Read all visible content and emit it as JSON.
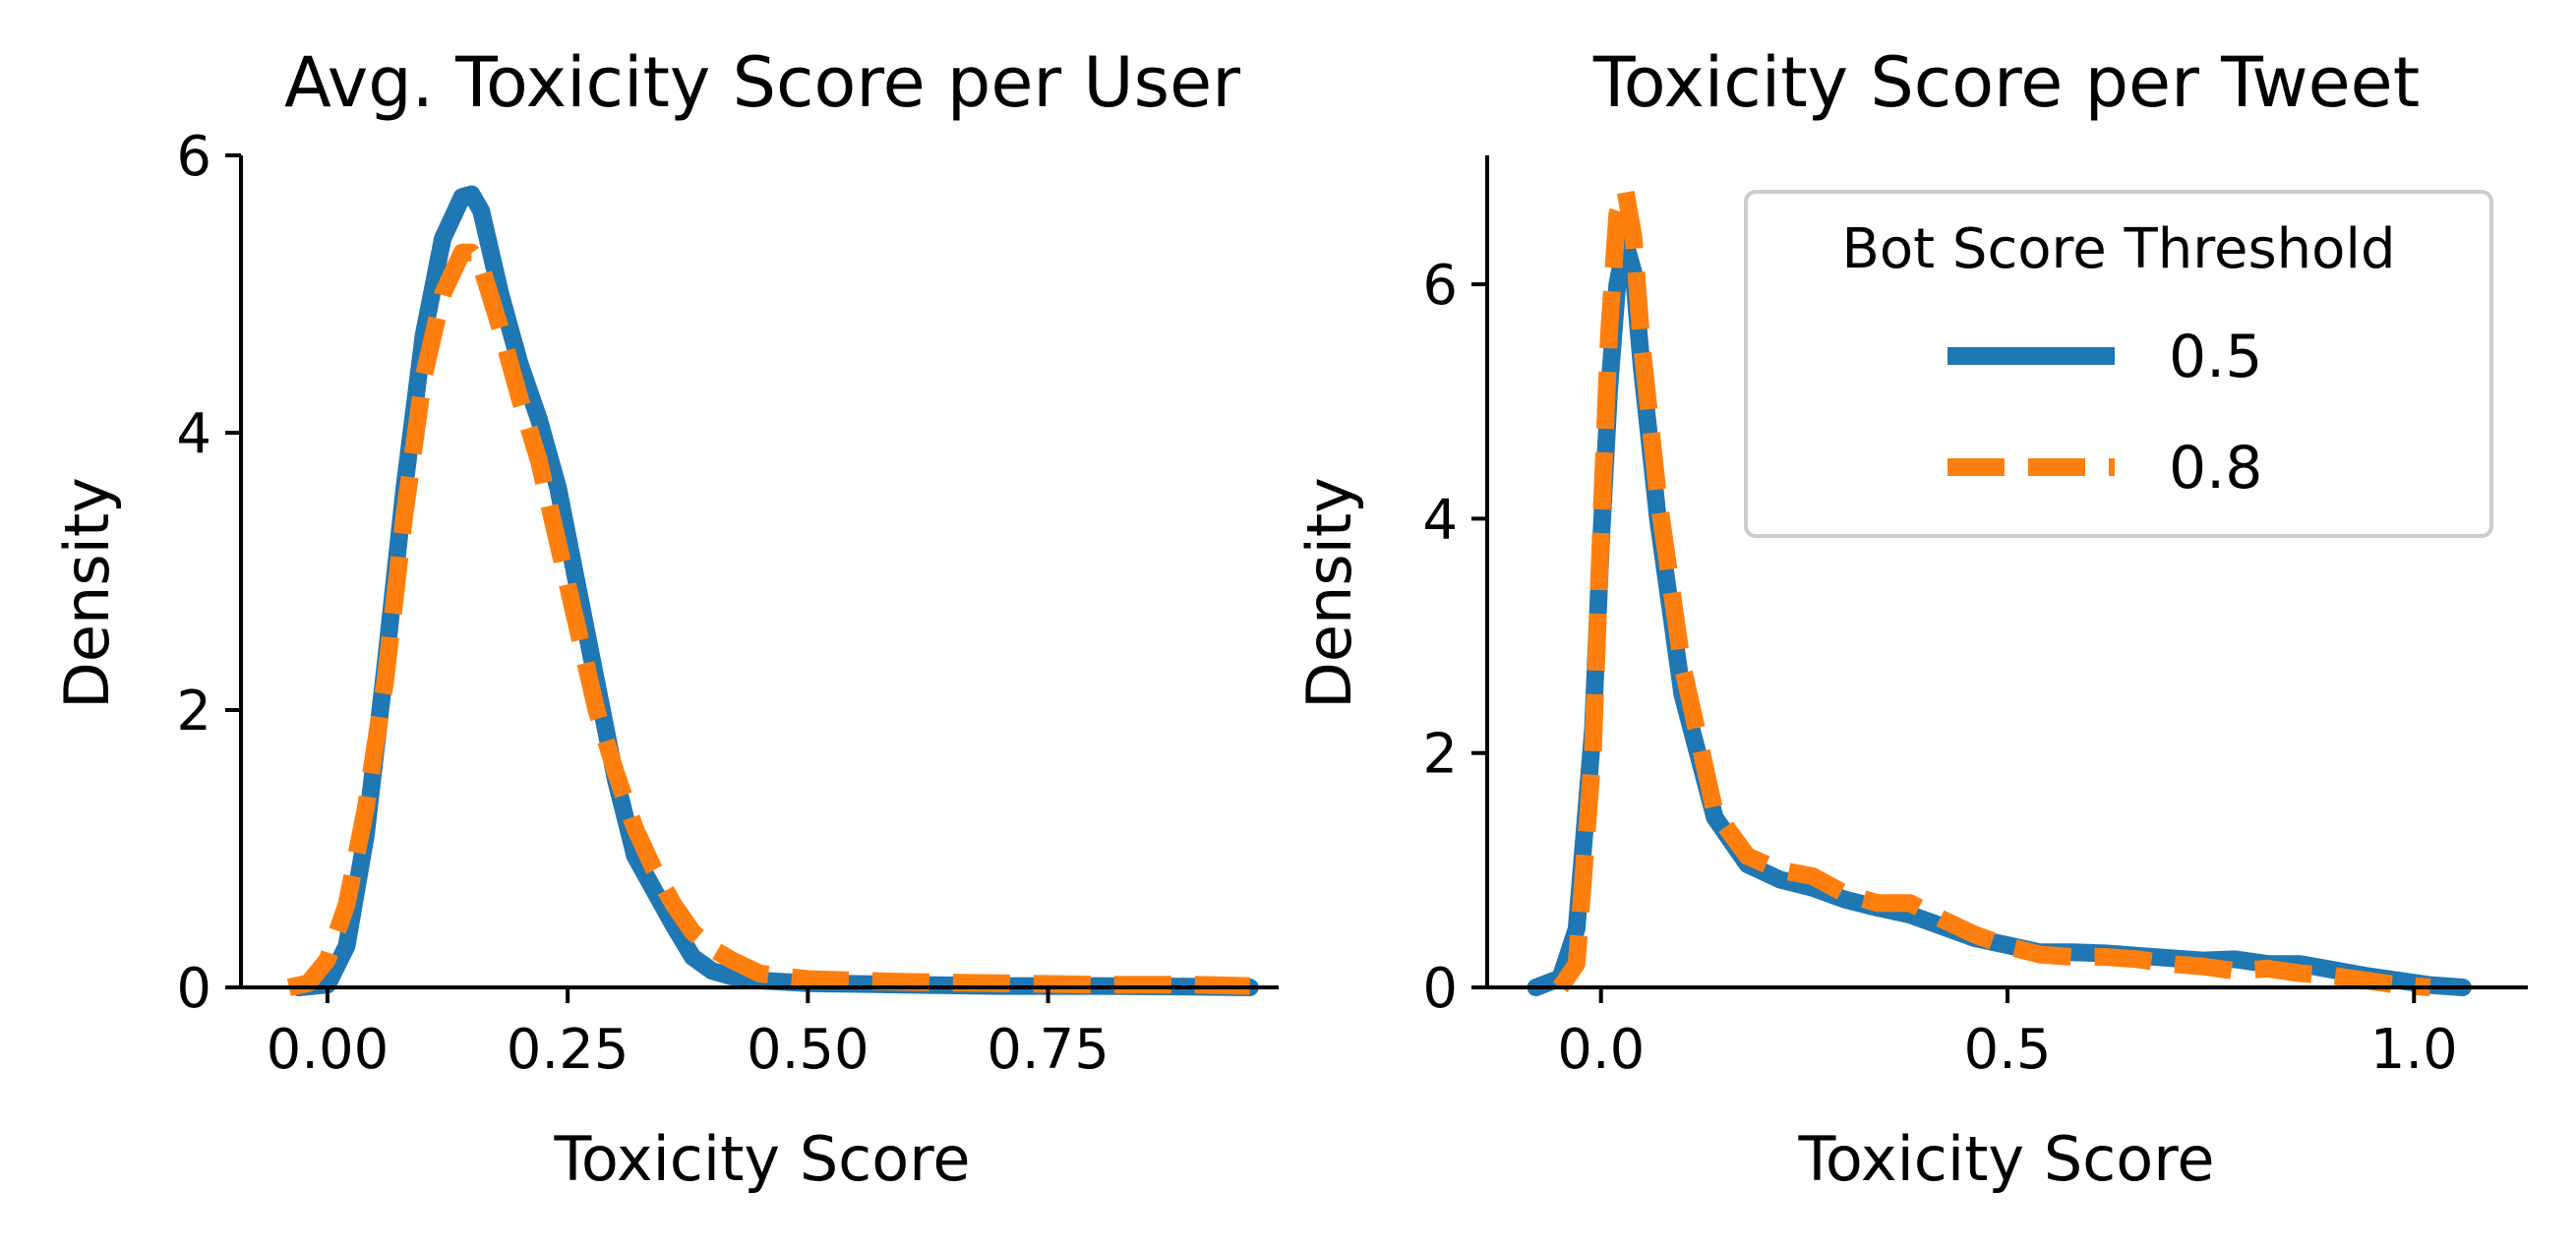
{
  "legend": {
    "title": "Bot Score Threshold",
    "placement": "upper-right of right panel",
    "entries": [
      {
        "label": "0.5",
        "color": "#1f77b4",
        "style": "solid"
      },
      {
        "label": "0.8",
        "color": "#ff7f0e",
        "style": "dashed"
      }
    ]
  },
  "chart_data": [
    {
      "type": "line",
      "title": "Avg. Toxicity Score per User",
      "xlabel": "Toxicity Score",
      "ylabel": "Density",
      "xlim": [
        -0.09,
        0.99
      ],
      "ylim": [
        0,
        6
      ],
      "xticks": [
        0.0,
        0.25,
        0.5,
        0.75
      ],
      "xtick_labels": [
        "0.00",
        "0.25",
        "0.50",
        "0.75"
      ],
      "yticks": [
        0,
        2,
        4,
        6
      ],
      "ytick_labels": [
        "0",
        "2",
        "4",
        "6"
      ],
      "grid": false,
      "series": [
        {
          "name": "0.5",
          "color": "#1f77b4",
          "style": "solid",
          "x": [
            -0.03,
            0.0,
            0.02,
            0.04,
            0.06,
            0.08,
            0.1,
            0.12,
            0.14,
            0.15,
            0.16,
            0.18,
            0.2,
            0.22,
            0.24,
            0.26,
            0.28,
            0.3,
            0.32,
            0.34,
            0.36,
            0.38,
            0.4,
            0.42,
            0.45,
            0.5,
            0.6,
            0.7,
            0.8,
            0.9,
            0.96
          ],
          "y": [
            0.0,
            0.02,
            0.3,
            1.1,
            2.3,
            3.6,
            4.7,
            5.4,
            5.7,
            5.72,
            5.6,
            5.0,
            4.5,
            4.1,
            3.6,
            2.9,
            2.2,
            1.5,
            0.95,
            0.7,
            0.45,
            0.22,
            0.12,
            0.08,
            0.05,
            0.03,
            0.02,
            0.01,
            0.01,
            0.005,
            0.0
          ]
        },
        {
          "name": "0.8",
          "color": "#ff7f0e",
          "style": "dashed",
          "x": [
            -0.04,
            -0.02,
            0.0,
            0.02,
            0.04,
            0.06,
            0.08,
            0.1,
            0.12,
            0.14,
            0.15,
            0.16,
            0.18,
            0.2,
            0.22,
            0.24,
            0.26,
            0.28,
            0.3,
            0.32,
            0.34,
            0.36,
            0.38,
            0.4,
            0.42,
            0.45,
            0.5,
            0.6,
            0.7,
            0.8,
            0.9,
            0.96
          ],
          "y": [
            0.0,
            0.03,
            0.2,
            0.6,
            1.3,
            2.2,
            3.4,
            4.4,
            5.0,
            5.3,
            5.3,
            5.2,
            4.75,
            4.25,
            3.8,
            3.2,
            2.6,
            2.0,
            1.55,
            1.15,
            0.85,
            0.6,
            0.4,
            0.28,
            0.2,
            0.1,
            0.06,
            0.04,
            0.03,
            0.02,
            0.02,
            0.01
          ]
        }
      ]
    },
    {
      "type": "line",
      "title": "Toxicity Score per Tweet",
      "xlabel": "Toxicity Score",
      "ylabel": "Density",
      "xlim": [
        -0.14,
        1.14
      ],
      "ylim": [
        0,
        7.1
      ],
      "xticks": [
        0.0,
        0.5,
        1.0
      ],
      "xtick_labels": [
        "0.0",
        "0.5",
        "1.0"
      ],
      "yticks": [
        0,
        2,
        4,
        6
      ],
      "ytick_labels": [
        "0",
        "2",
        "4",
        "6"
      ],
      "grid": false,
      "series": [
        {
          "name": "0.5",
          "color": "#1f77b4",
          "style": "solid",
          "x": [
            -0.08,
            -0.05,
            -0.03,
            -0.01,
            0.0,
            0.01,
            0.02,
            0.03,
            0.04,
            0.05,
            0.07,
            0.1,
            0.14,
            0.18,
            0.22,
            0.26,
            0.3,
            0.34,
            0.38,
            0.42,
            0.46,
            0.5,
            0.54,
            0.58,
            0.62,
            0.66,
            0.7,
            0.74,
            0.78,
            0.82,
            0.86,
            0.9,
            0.94,
            0.98,
            1.02,
            1.06
          ],
          "y": [
            0.0,
            0.08,
            0.5,
            2.2,
            3.8,
            5.1,
            6.0,
            6.35,
            6.1,
            5.3,
            4.0,
            2.5,
            1.45,
            1.05,
            0.92,
            0.85,
            0.75,
            0.68,
            0.62,
            0.52,
            0.42,
            0.36,
            0.3,
            0.3,
            0.29,
            0.27,
            0.25,
            0.23,
            0.24,
            0.2,
            0.2,
            0.15,
            0.1,
            0.06,
            0.02,
            0.0
          ]
        },
        {
          "name": "0.8",
          "color": "#ff7f0e",
          "style": "dashed",
          "x": [
            -0.05,
            -0.03,
            -0.01,
            0.0,
            0.01,
            0.02,
            0.03,
            0.04,
            0.05,
            0.07,
            0.1,
            0.14,
            0.18,
            0.22,
            0.26,
            0.3,
            0.34,
            0.38,
            0.42,
            0.46,
            0.5,
            0.54,
            0.58,
            0.62,
            0.66,
            0.7,
            0.74,
            0.78,
            0.82,
            0.86,
            0.9,
            0.94,
            0.98,
            1.02
          ],
          "y": [
            0.0,
            0.2,
            2.0,
            3.9,
            5.6,
            6.6,
            6.8,
            6.4,
            5.5,
            4.2,
            2.75,
            1.5,
            1.12,
            1.0,
            0.95,
            0.8,
            0.72,
            0.72,
            0.58,
            0.45,
            0.35,
            0.28,
            0.26,
            0.26,
            0.24,
            0.2,
            0.18,
            0.14,
            0.16,
            0.12,
            0.1,
            0.06,
            0.02,
            0.0
          ]
        }
      ]
    }
  ]
}
